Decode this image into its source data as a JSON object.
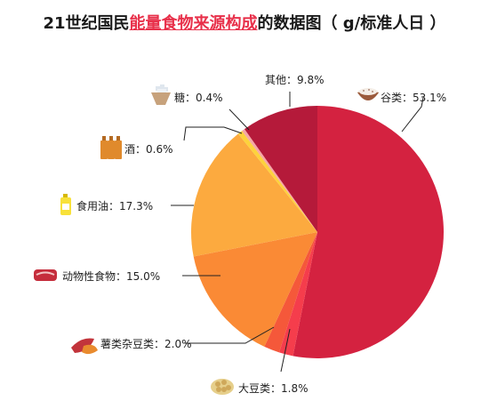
{
  "title": {
    "prefix": "21世纪国民",
    "highlight": "能量食物来源构成",
    "suffix": "的数据图（ g/标准人日 ）"
  },
  "colors": {
    "highlight": "#e8304a"
  },
  "chart_data": {
    "type": "pie",
    "title": "21世纪国民能量食物来源构成的数据图（ g/标准人日 ）",
    "slices": [
      {
        "label": "谷类：53.1%",
        "value": 53.1,
        "color": "#d42240",
        "icon": "rice-bowl-icon"
      },
      {
        "label": "大豆类：1.8%",
        "value": 1.8,
        "color": "#f53d4c",
        "icon": "soybeans-icon"
      },
      {
        "label": "薯类杂豆类：2.0%",
        "value": 2.0,
        "color": "#f5583a",
        "icon": "sweet-potato-icon"
      },
      {
        "label": "动物性食物：15.0%",
        "value": 15.0,
        "color": "#fa8a35",
        "icon": "meat-icon"
      },
      {
        "label": "食用油：17.3%",
        "value": 17.3,
        "color": "#fcaa3f",
        "icon": "oil-bottle-icon"
      },
      {
        "label": "酒：0.6%",
        "value": 0.6,
        "color": "#fdd23c",
        "icon": "wine-bottles-icon"
      },
      {
        "label": "糖：0.4%",
        "value": 0.4,
        "color": "#f6a7a5",
        "icon": "sugar-icon"
      },
      {
        "label": "其他：9.8%",
        "value": 9.8,
        "color": "#b51a3a",
        "icon": ""
      }
    ]
  }
}
